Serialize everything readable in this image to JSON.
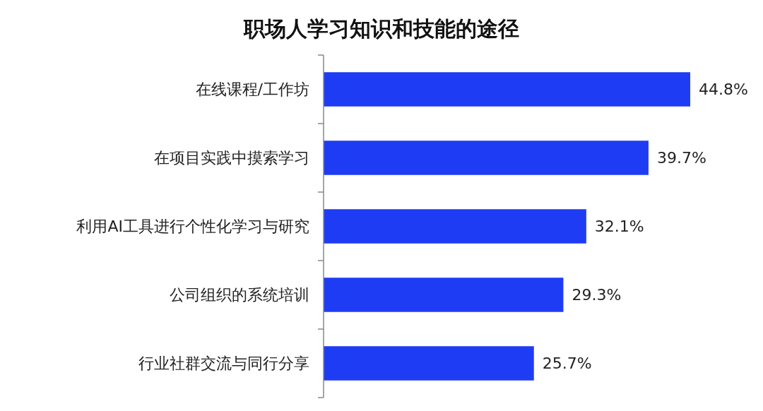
{
  "chart_data": {
    "type": "bar",
    "orientation": "horizontal",
    "title": "职场人学习知识和技能的途径",
    "categories": [
      "在线课程/工作坊",
      "在项目实践中摸索学习",
      "利用AI工具进行个性化学习与研究",
      "公司组织的系统培训",
      "行业社群交流与同行分享"
    ],
    "values": [
      44.8,
      39.7,
      32.1,
      29.3,
      25.7
    ],
    "value_labels": [
      "44.8%",
      "39.7%",
      "32.1%",
      "29.3%",
      "25.7%"
    ],
    "color": "#1f3cf5"
  }
}
